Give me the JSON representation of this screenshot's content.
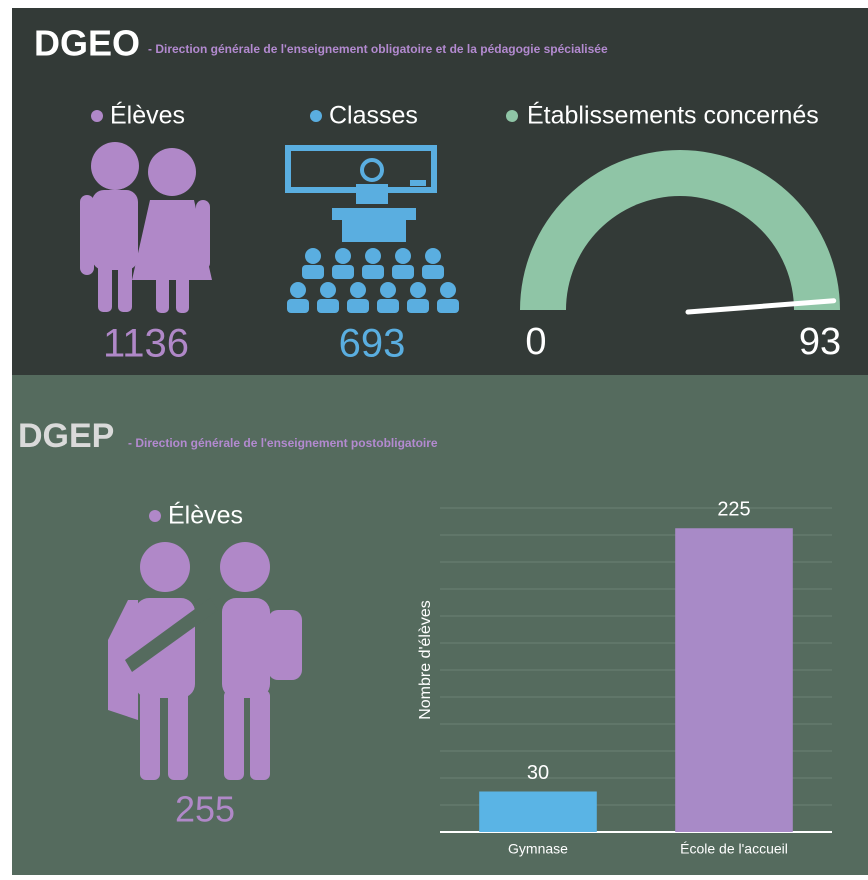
{
  "dgeo": {
    "title": "DGEO",
    "subtitle": "- Direction générale de l'enseignement obligatoire et de la pédagogie spécialisée",
    "eleves": {
      "label": "Élèves",
      "value": 1136
    },
    "classes": {
      "label": "Classes",
      "value": 693
    },
    "gauge": {
      "label": "Établissements concernés",
      "min": 0,
      "max": 93,
      "value": 93,
      "color": "#8fc5a6"
    }
  },
  "dgep": {
    "title": "DGEP",
    "subtitle": "- Direction générale de l'enseignement postobligatoire",
    "eleves": {
      "label": "Élèves",
      "value": 255
    }
  },
  "chart_data": {
    "type": "bar",
    "y_label": "Nombre d'élèves",
    "categories": [
      "Gymnase",
      "École de l'accueil"
    ],
    "values": [
      30,
      225
    ],
    "colors": [
      "#5ab4e5",
      "#a88ac7"
    ],
    "ylim": [
      0,
      240
    ],
    "yticks": [
      0,
      20,
      40,
      60,
      80,
      100,
      120,
      140,
      160,
      180,
      200,
      220,
      240
    ],
    "grid": true
  }
}
